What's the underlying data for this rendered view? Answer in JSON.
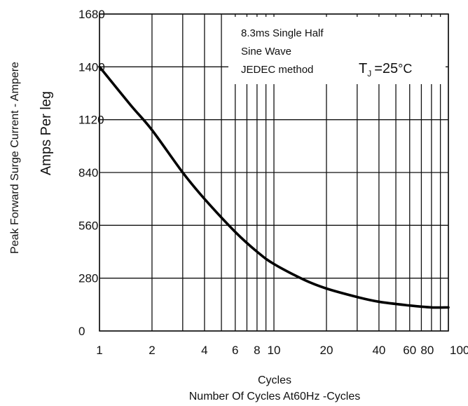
{
  "chart_data": {
    "type": "line",
    "title": "",
    "xlabel": "Cycles",
    "xlabel2": "Number Of Cycles  At60Hz -Cycles",
    "ylabel": "Peak Forward Surge Current - Ampere",
    "ylabel2": "Amps  Per leg",
    "xscale": "log",
    "xlim": [
      1,
      100
    ],
    "ylim": [
      0,
      1680
    ],
    "grid": true,
    "x_ticks": [
      {
        "value": 1,
        "label": "1"
      },
      {
        "value": 2,
        "label": "2"
      },
      {
        "value": 4,
        "label": "4"
      },
      {
        "value": 6,
        "label": "6"
      },
      {
        "value": 8,
        "label": "8"
      },
      {
        "value": 10,
        "label": "10"
      },
      {
        "value": 20,
        "label": "20"
      },
      {
        "value": 40,
        "label": "40"
      },
      {
        "value": 60,
        "label": "60"
      },
      {
        "value": 80,
        "label": "80"
      },
      {
        "value": 100,
        "label": "100"
      }
    ],
    "y_ticks": [
      {
        "value": 0,
        "label": "0"
      },
      {
        "value": 280,
        "label": "280"
      },
      {
        "value": 560,
        "label": "560"
      },
      {
        "value": 840,
        "label": "840"
      },
      {
        "value": 1120,
        "label": "1120"
      },
      {
        "value": 1400,
        "label": "1400"
      },
      {
        "value": 1680,
        "label": "1680"
      }
    ],
    "x_minor_grid": [
      3,
      5,
      7,
      9,
      30,
      50,
      70,
      90
    ],
    "annotations": {
      "line1": "8.3ms Single Half",
      "line2": "Sine Wave",
      "line3": "JEDEC method",
      "tj_main": "T",
      "tj_sub": "J",
      "tj_value": "=25",
      "tj_unit": "°C"
    },
    "series": [
      {
        "color": "#000000",
        "x": [
          1,
          1.5,
          2,
          3,
          4,
          6,
          8,
          10,
          15,
          20,
          30,
          40,
          60,
          80,
          100
        ],
        "y": [
          1400,
          1200,
          1065,
          840,
          700,
          525,
          420,
          355,
          270,
          225,
          180,
          155,
          135,
          125,
          125
        ]
      }
    ]
  }
}
